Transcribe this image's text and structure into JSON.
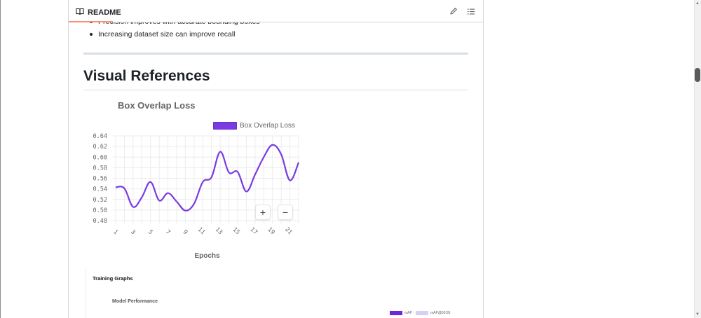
{
  "header": {
    "tab_label": "README",
    "icons": {
      "tab": "book-icon",
      "edit": "pencil-icon",
      "outline": "list-icon"
    }
  },
  "bullets": [
    "Precision improves with accurate bounding boxes",
    "Increasing dataset size can improve recall"
  ],
  "section_heading": "Visual References",
  "chart_data": [
    {
      "type": "line",
      "title": "Box Overlap Loss",
      "xlabel": "Epochs",
      "ylabel": "",
      "x": [
        1,
        2,
        3,
        4,
        5,
        6,
        7,
        8,
        9,
        10,
        11,
        12,
        13,
        14,
        15,
        16,
        17,
        18,
        19,
        20,
        21,
        22
      ],
      "xticks": [
        "1",
        "3",
        "5",
        "7",
        "9",
        "11",
        "13",
        "15",
        "17",
        "19",
        "21"
      ],
      "yticks": [
        "0.64",
        "0.62",
        "0.60",
        "0.58",
        "0.56",
        "0.54",
        "0.52",
        "0.50",
        "0.48"
      ],
      "ylim": [
        0.48,
        0.64
      ],
      "series": [
        {
          "name": "Box Overlap Loss",
          "color": "#7a3be0",
          "values": [
            0.543,
            0.541,
            0.506,
            0.524,
            0.553,
            0.518,
            0.532,
            0.516,
            0.499,
            0.512,
            0.553,
            0.562,
            0.61,
            0.571,
            0.572,
            0.535,
            0.567,
            0.6,
            0.623,
            0.605,
            0.556,
            0.59
          ]
        }
      ],
      "grid": true,
      "legend_position": "top-right",
      "zoom_controls": [
        "+",
        "−"
      ]
    },
    {
      "type": "line",
      "panel_title": "Training Graphs",
      "title": "Model Performance",
      "legend": [
        {
          "name": "mAP",
          "color": "#6d28d9"
        },
        {
          "name": "mAP@50:95",
          "color": "#d6d0f7"
        }
      ]
    }
  ]
}
